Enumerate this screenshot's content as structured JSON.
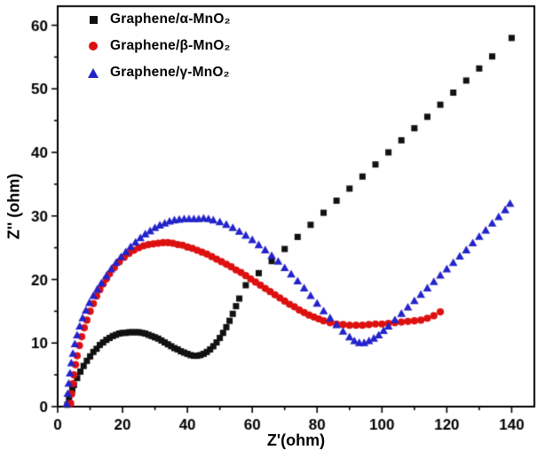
{
  "chart_data": {
    "type": "scatter",
    "title": "",
    "xlabel": "Z'(ohm)",
    "ylabel": "Z'' (ohm)",
    "xlim": [
      0,
      147
    ],
    "ylim": [
      0,
      63
    ],
    "xticks": [
      0,
      20,
      40,
      60,
      80,
      100,
      120,
      140
    ],
    "yticks": [
      0,
      10,
      20,
      30,
      40,
      50,
      60
    ],
    "x_minor_step": 10,
    "y_minor_step": 5,
    "grid": false,
    "legend_position": "top-left",
    "frame_color": "#000000",
    "series": [
      {
        "label": "Graphene/α-MnO₂",
        "marker": "square",
        "color": "#111111",
        "points": [
          [
            3,
            0.3
          ],
          [
            3.5,
            1.2
          ],
          [
            4,
            2
          ],
          [
            4.5,
            2.7
          ],
          [
            5,
            3.4
          ],
          [
            6,
            4.5
          ],
          [
            7,
            5.5
          ],
          [
            8,
            6.4
          ],
          [
            9,
            7.2
          ],
          [
            10,
            7.9
          ],
          [
            11,
            8.6
          ],
          [
            12,
            9.1
          ],
          [
            13,
            9.7
          ],
          [
            14,
            10.1
          ],
          [
            15,
            10.5
          ],
          [
            16,
            10.8
          ],
          [
            17,
            11.1
          ],
          [
            18,
            11.3
          ],
          [
            19,
            11.5
          ],
          [
            20,
            11.6
          ],
          [
            21,
            11.6
          ],
          [
            22,
            11.7
          ],
          [
            23,
            11.7
          ],
          [
            24,
            11.7
          ],
          [
            25,
            11.7
          ],
          [
            26,
            11.6
          ],
          [
            27,
            11.5
          ],
          [
            28,
            11.3
          ],
          [
            29,
            11.1
          ],
          [
            30,
            10.9
          ],
          [
            31,
            10.7
          ],
          [
            32,
            10.4
          ],
          [
            33,
            10.1
          ],
          [
            34,
            9.8
          ],
          [
            35,
            9.5
          ],
          [
            36,
            9.2
          ],
          [
            37,
            9
          ],
          [
            38,
            8.7
          ],
          [
            39,
            8.5
          ],
          [
            40,
            8.3
          ],
          [
            41,
            8.1
          ],
          [
            42,
            8
          ],
          [
            43,
            8
          ],
          [
            44,
            8.1
          ],
          [
            45,
            8.3
          ],
          [
            46,
            8.6
          ],
          [
            47,
            9
          ],
          [
            48,
            9.5
          ],
          [
            49,
            10.1
          ],
          [
            50,
            10.8
          ],
          [
            51,
            11.6
          ],
          [
            52,
            12.5
          ],
          [
            53,
            13.5
          ],
          [
            54,
            14.6
          ],
          [
            55,
            15.8
          ],
          [
            56,
            17
          ],
          [
            58,
            19.1
          ],
          [
            62,
            21
          ],
          [
            66,
            22.9
          ],
          [
            70,
            24.8
          ],
          [
            74,
            26.7
          ],
          [
            78,
            28.6
          ],
          [
            82,
            30.5
          ],
          [
            86,
            32.4
          ],
          [
            90,
            34.3
          ],
          [
            94,
            36.2
          ],
          [
            98,
            38.1
          ],
          [
            102,
            40
          ],
          [
            106,
            41.9
          ],
          [
            110,
            43.8
          ],
          [
            114,
            45.6
          ],
          [
            118,
            47.5
          ],
          [
            122,
            49.4
          ],
          [
            126,
            51.3
          ],
          [
            130,
            53.2
          ],
          [
            134,
            55.1
          ],
          [
            140,
            58
          ]
        ]
      },
      {
        "label": "Graphene/β-MnO₂",
        "marker": "circle",
        "color": "#dd1010",
        "points": [
          [
            4,
            0.5
          ],
          [
            4.3,
            2
          ],
          [
            4.7,
            3.6
          ],
          [
            5,
            5
          ],
          [
            5.5,
            6.6
          ],
          [
            6,
            8
          ],
          [
            6.7,
            9.6
          ],
          [
            7.4,
            11
          ],
          [
            8.2,
            12.4
          ],
          [
            9,
            13.6
          ],
          [
            10,
            15
          ],
          [
            11,
            16.2
          ],
          [
            12,
            17.4
          ],
          [
            13,
            18.4
          ],
          [
            14,
            19.3
          ],
          [
            15,
            20.1
          ],
          [
            16,
            20.9
          ],
          [
            17.5,
            21.9
          ],
          [
            19,
            22.8
          ],
          [
            20.5,
            23.5
          ],
          [
            22,
            24.1
          ],
          [
            23.5,
            24.6
          ],
          [
            25,
            25
          ],
          [
            26.5,
            25.3
          ],
          [
            28,
            25.5
          ],
          [
            29.5,
            25.6
          ],
          [
            31,
            25.7
          ],
          [
            32.5,
            25.8
          ],
          [
            34,
            25.8
          ],
          [
            35.5,
            25.7
          ],
          [
            37,
            25.5
          ],
          [
            38.5,
            25.4
          ],
          [
            40,
            25.1
          ],
          [
            41.5,
            24.9
          ],
          [
            43,
            24.6
          ],
          [
            44.5,
            24.3
          ],
          [
            46,
            24
          ],
          [
            47.5,
            23.6
          ],
          [
            49,
            23.2
          ],
          [
            50.5,
            22.8
          ],
          [
            52,
            22.4
          ],
          [
            53.5,
            22
          ],
          [
            55,
            21.5
          ],
          [
            56.5,
            21.1
          ],
          [
            58,
            20.6
          ],
          [
            59.5,
            20.1
          ],
          [
            61,
            19.6
          ],
          [
            62.5,
            19.1
          ],
          [
            64,
            18.6
          ],
          [
            65.5,
            18.1
          ],
          [
            67,
            17.6
          ],
          [
            68.5,
            17.1
          ],
          [
            70,
            16.6
          ],
          [
            71.5,
            16.1
          ],
          [
            73,
            15.7
          ],
          [
            74.5,
            15.2
          ],
          [
            76,
            14.8
          ],
          [
            77.5,
            14.4
          ],
          [
            79,
            14.1
          ],
          [
            80.5,
            13.8
          ],
          [
            82,
            13.5
          ],
          [
            84,
            13.2
          ],
          [
            86,
            13
          ],
          [
            88,
            12.9
          ],
          [
            90,
            12.8
          ],
          [
            92,
            12.8
          ],
          [
            94,
            12.8
          ],
          [
            96,
            12.9
          ],
          [
            98,
            13
          ],
          [
            100,
            13
          ],
          [
            102,
            13.1
          ],
          [
            104,
            13.2
          ],
          [
            106,
            13.3
          ],
          [
            108,
            13.4
          ],
          [
            110,
            13.5
          ],
          [
            112,
            13.6
          ],
          [
            114,
            13.9
          ],
          [
            116,
            14.3
          ],
          [
            118,
            14.9
          ]
        ]
      },
      {
        "label": "Graphene/γ-MnO₂",
        "marker": "triangle",
        "color": "#2323cb",
        "points": [
          [
            2.8,
            0.4
          ],
          [
            3.1,
            2
          ],
          [
            3.4,
            3.6
          ],
          [
            3.8,
            5.2
          ],
          [
            4.2,
            6.8
          ],
          [
            4.7,
            8.3
          ],
          [
            5.3,
            9.8
          ],
          [
            6,
            11.2
          ],
          [
            6.8,
            12.6
          ],
          [
            7.7,
            13.9
          ],
          [
            8.7,
            15.1
          ],
          [
            9.8,
            16.3
          ],
          [
            11,
            17.4
          ],
          [
            12.2,
            18.4
          ],
          [
            13.5,
            19.4
          ],
          [
            15,
            20.5
          ],
          [
            16.5,
            21.6
          ],
          [
            18,
            22.6
          ],
          [
            19.5,
            23.5
          ],
          [
            21,
            24.3
          ],
          [
            22.5,
            25.1
          ],
          [
            24,
            25.8
          ],
          [
            25.5,
            26.5
          ],
          [
            27,
            27.1
          ],
          [
            28.5,
            27.6
          ],
          [
            30,
            28.1
          ],
          [
            31.5,
            28.5
          ],
          [
            33,
            28.8
          ],
          [
            34.5,
            29.1
          ],
          [
            36,
            29.3
          ],
          [
            37.5,
            29.4
          ],
          [
            39,
            29.5
          ],
          [
            40.5,
            29.5
          ],
          [
            42,
            29.5
          ],
          [
            43.5,
            29.5
          ],
          [
            45,
            29.6
          ],
          [
            46.5,
            29.5
          ],
          [
            48,
            29.3
          ],
          [
            50,
            29
          ],
          [
            52,
            28.6
          ],
          [
            54,
            28.1
          ],
          [
            56,
            27.5
          ],
          [
            58,
            26.9
          ],
          [
            60,
            26.2
          ],
          [
            62,
            25.4
          ],
          [
            64,
            24.6
          ],
          [
            66,
            23.7
          ],
          [
            68,
            22.8
          ],
          [
            70,
            21.8
          ],
          [
            72,
            20.8
          ],
          [
            74,
            19.7
          ],
          [
            76,
            18.6
          ],
          [
            78,
            17.4
          ],
          [
            80,
            16.2
          ],
          [
            82,
            15
          ],
          [
            84,
            13.9
          ],
          [
            86,
            12.8
          ],
          [
            88,
            11.8
          ],
          [
            90,
            10.9
          ],
          [
            91.5,
            10.3
          ],
          [
            93,
            10
          ],
          [
            94.5,
            10
          ],
          [
            96,
            10.3
          ],
          [
            97.5,
            10.7
          ],
          [
            99,
            11.2
          ],
          [
            100.5,
            11.9
          ],
          [
            102,
            12.6
          ],
          [
            104,
            13.6
          ],
          [
            106,
            14.6
          ],
          [
            108,
            15.6
          ],
          [
            110,
            16.6
          ],
          [
            112,
            17.6
          ],
          [
            114,
            18.6
          ],
          [
            116,
            19.6
          ],
          [
            118,
            20.6
          ],
          [
            120,
            21.6
          ],
          [
            122,
            22.6
          ],
          [
            124,
            23.6
          ],
          [
            126,
            24.6
          ],
          [
            128,
            25.7
          ],
          [
            130,
            26.7
          ],
          [
            132,
            27.7
          ],
          [
            134,
            28.8
          ],
          [
            136,
            29.8
          ],
          [
            138,
            30.9
          ],
          [
            139.5,
            31.9
          ]
        ]
      }
    ]
  }
}
